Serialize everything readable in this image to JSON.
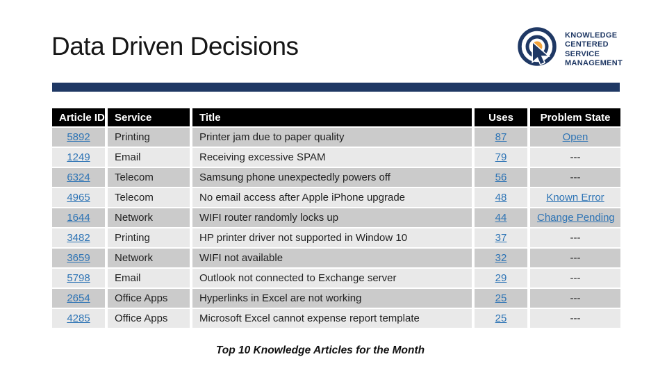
{
  "slide": {
    "title": "Data Driven Decisions",
    "caption": "Top 10 Knowledge Articles for the Month"
  },
  "logo": {
    "line1": "KNOWLEDGE",
    "line2": "CENTERED",
    "line3": "SERVICE",
    "line4": "MANAGEMENT",
    "icon": "bullseye-cursor-icon"
  },
  "colors": {
    "accent_bar": "#1F3864",
    "header_bg": "#000000",
    "header_text": "#ffffff",
    "row_band_dark": "#cbcbcb",
    "row_band_light": "#e9e9e9",
    "hyperlink": "#2E74B5",
    "logo_navy": "#1F3864",
    "logo_orange": "#F2A33C"
  },
  "table": {
    "columns": [
      "Article ID",
      "Service",
      "Title",
      "Uses",
      "Problem State"
    ],
    "rows": [
      {
        "article_id": "5892",
        "service": "Printing",
        "title": "Printer jam due to paper quality",
        "uses": "87",
        "problem_state": "Open",
        "problem_state_link": true
      },
      {
        "article_id": "1249",
        "service": "Email",
        "title": "Receiving excessive SPAM",
        "uses": "79",
        "problem_state": "---",
        "problem_state_link": false
      },
      {
        "article_id": "6324",
        "service": "Telecom",
        "title": "Samsung phone unexpectedly powers off",
        "uses": "56",
        "problem_state": "---",
        "problem_state_link": false
      },
      {
        "article_id": "4965",
        "service": "Telecom",
        "title": "No email access after Apple iPhone upgrade",
        "uses": "48",
        "problem_state": "Known Error",
        "problem_state_link": true
      },
      {
        "article_id": "1644",
        "service": "Network",
        "title": "WIFI router randomly locks up",
        "uses": "44",
        "problem_state": "Change Pending",
        "problem_state_link": true
      },
      {
        "article_id": "3482",
        "service": "Printing",
        "title": "HP printer driver not supported in Window 10",
        "uses": "37",
        "problem_state": "---",
        "problem_state_link": false
      },
      {
        "article_id": "3659",
        "service": "Network",
        "title": "WIFI not available",
        "uses": "32",
        "problem_state": "---",
        "problem_state_link": false
      },
      {
        "article_id": "5798",
        "service": "Email",
        "title": "Outlook not connected to Exchange server",
        "uses": "29",
        "problem_state": "---",
        "problem_state_link": false
      },
      {
        "article_id": "2654",
        "service": "Office Apps",
        "title": "Hyperlinks in Excel are not working",
        "uses": "25",
        "problem_state": "---",
        "problem_state_link": false
      },
      {
        "article_id": "4285",
        "service": "Office Apps",
        "title": "Microsoft Excel cannot expense report template",
        "uses": "25",
        "problem_state": "---",
        "problem_state_link": false
      }
    ]
  }
}
